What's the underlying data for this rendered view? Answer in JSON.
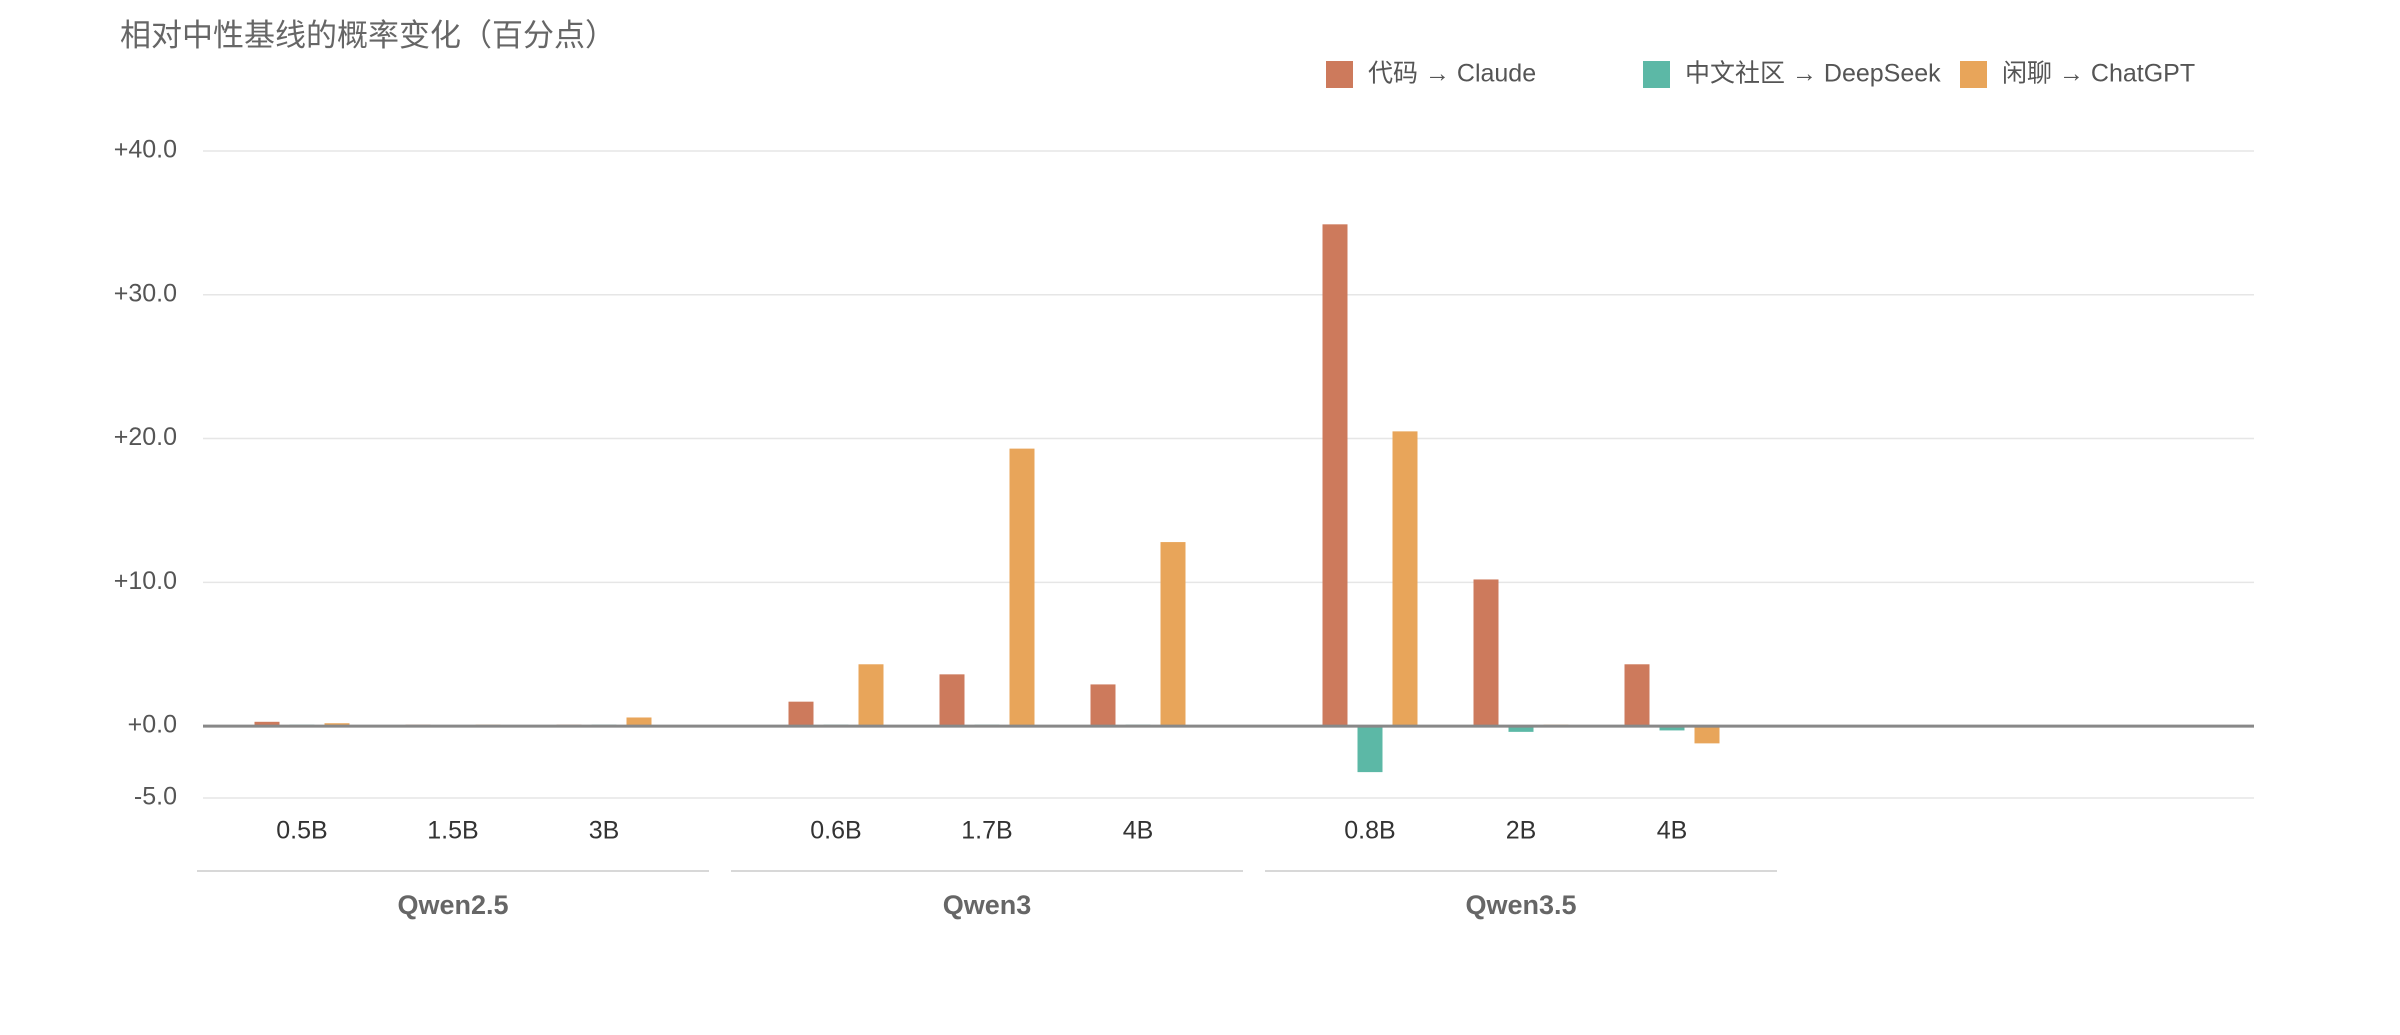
{
  "chart_data": {
    "type": "bar",
    "title": "相对中性基线的概率变化（百分点）",
    "groups": [
      {
        "name": "Qwen2.5",
        "categories": [
          "0.5B",
          "1.5B",
          "3B"
        ]
      },
      {
        "name": "Qwen3",
        "categories": [
          "0.6B",
          "1.7B",
          "4B"
        ]
      },
      {
        "name": "Qwen3.5",
        "categories": [
          "0.8B",
          "2B",
          "4B"
        ]
      }
    ],
    "series": [
      {
        "name": "代码 → Claude",
        "color": "#cd7a5c",
        "values": [
          0.3,
          0.1,
          0.1,
          1.7,
          3.6,
          2.9,
          34.9,
          10.2,
          4.3
        ]
      },
      {
        "name": "中文社区 → DeepSeek",
        "color": "#5cb8a6",
        "values": [
          0.1,
          0.05,
          0.1,
          0.1,
          0.1,
          0.1,
          -3.2,
          -0.4,
          -0.3
        ]
      },
      {
        "name": "闲聊 → ChatGPT",
        "color": "#e8a55a",
        "values": [
          0.2,
          0.1,
          0.6,
          4.3,
          19.3,
          12.8,
          20.5,
          0.1,
          -1.2
        ]
      }
    ],
    "ylim": [
      -5,
      40
    ],
    "yticks": [
      {
        "value": -5,
        "label": "-5.0"
      },
      {
        "value": 0,
        "label": "+0.0"
      },
      {
        "value": 10,
        "label": "+10.0"
      },
      {
        "value": 20,
        "label": "+20.0"
      },
      {
        "value": 30,
        "label": "+30.0"
      },
      {
        "value": 40,
        "label": "+40.0"
      }
    ],
    "grid": true
  }
}
